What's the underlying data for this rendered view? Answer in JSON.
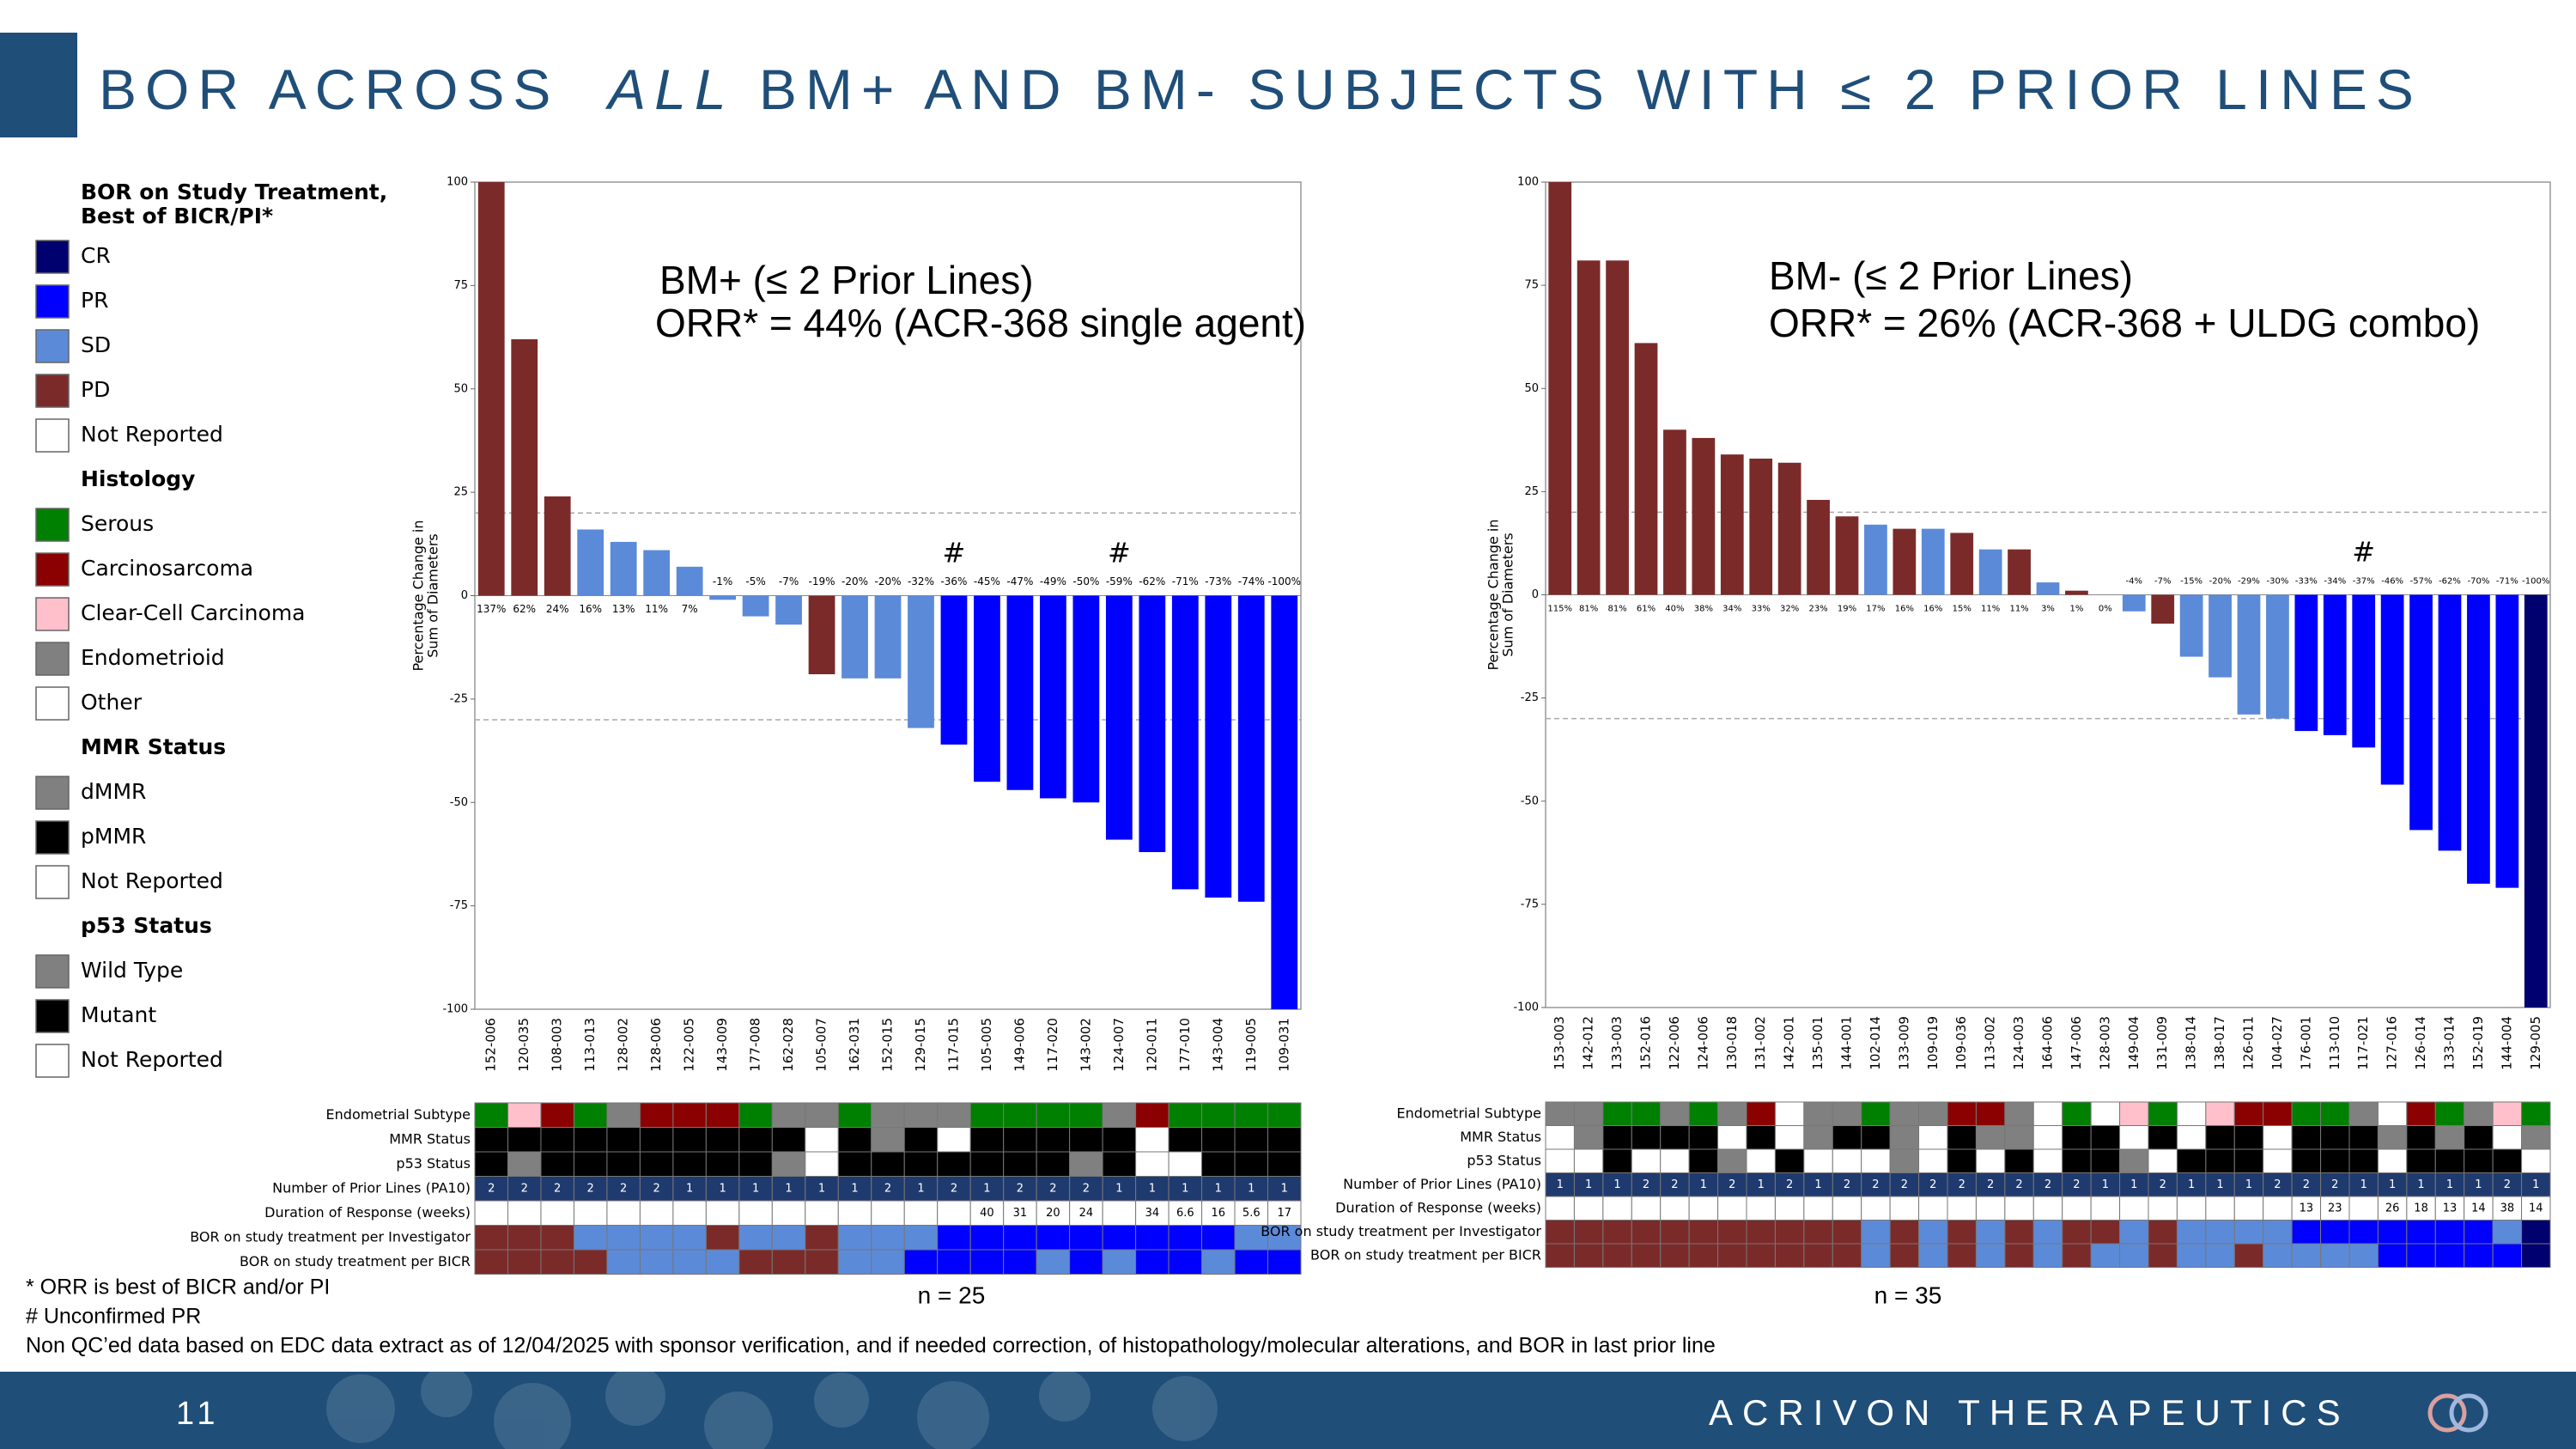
{
  "slide": {
    "title": [
      "BOR ACROSS  ",
      "ALL",
      " BM+ AND BM- SUBJECTS WITH ≤ 2 PRIOR LINES"
    ],
    "footnotes": [
      "* ORR is best of BICR and/or PI",
      "# Unconfirmed PR",
      "Non QC’ed data based on EDC data extract as of 12/04/2025 with sponsor verification, and if needed correction, of histopathology/molecular alterations, and BOR in last prior line"
    ],
    "page_number": "11",
    "company": "ACRIVON THERAPEUTICS"
  },
  "legend": {
    "groups": [
      {
        "title_lines": [
          "BOR on Study Treatment,",
          "Best of BICR/PI*"
        ],
        "items": [
          {
            "label": "CR",
            "color": "#00006e"
          },
          {
            "label": "PR",
            "color": "#0000ff"
          },
          {
            "label": "SD",
            "color": "#5b8ad9"
          },
          {
            "label": "PD",
            "color": "#7b2a2a"
          },
          {
            "label": "Not Reported",
            "color": "#ffffff"
          }
        ]
      },
      {
        "title_lines": [
          "Histology"
        ],
        "items": [
          {
            "label": "Serous",
            "color": "#008000"
          },
          {
            "label": "Carcinosarcoma",
            "color": "#8b0000"
          },
          {
            "label": "Clear-Cell Carcinoma",
            "color": "#ffc0cb"
          },
          {
            "label": "Endometrioid",
            "color": "#808080"
          },
          {
            "label": "Other",
            "color": "#ffffff"
          }
        ]
      },
      {
        "title_lines": [
          "MMR Status"
        ],
        "items": [
          {
            "label": "dMMR",
            "color": "#808080"
          },
          {
            "label": "pMMR",
            "color": "#000000"
          },
          {
            "label": "Not Reported",
            "color": "#ffffff"
          }
        ]
      },
      {
        "title_lines": [
          "p53 Status"
        ],
        "items": [
          {
            "label": "Wild Type",
            "color": "#808080"
          },
          {
            "label": "Mutant",
            "color": "#000000"
          },
          {
            "label": "Not Reported",
            "color": "#ffffff"
          }
        ]
      }
    ]
  },
  "chart_data": [
    {
      "type": "waterfall",
      "annotation_lines": [
        "BM+ (≤ 2 Prior Lines)",
        "ORR* = 44% (ACR-368 single agent)"
      ],
      "n_label": "n = 25",
      "ylabel_lines": [
        "Percentage Change in",
        "Sum of Diameters"
      ],
      "categories": [
        "152-006",
        "120-035",
        "108-003",
        "113-013",
        "128-002",
        "128-006",
        "122-005",
        "143-009",
        "177-008",
        "162-028",
        "105-007",
        "162-031",
        "152-015",
        "129-015",
        "117-015",
        "105-005",
        "149-006",
        "117-020",
        "143-002",
        "124-007",
        "120-011",
        "177-010",
        "143-004",
        "119-005",
        "109-031"
      ],
      "values": [
        137,
        62,
        24,
        16,
        13,
        11,
        7,
        -1,
        -5,
        -7,
        -19,
        -20,
        -20,
        -32,
        -36,
        -45,
        -47,
        -49,
        -50,
        -59,
        -62,
        -71,
        -73,
        -74,
        -100
      ],
      "value_labels": [
        "137%",
        "62%",
        "24%",
        "16%",
        "13%",
        "11%",
        "7%",
        "-1%",
        "-5%",
        "-7%",
        "-19%",
        "-20%",
        "-20%",
        "-32%",
        "-36%",
        "-45%",
        "-47%",
        "-49%",
        "-50%",
        "-59%",
        "-62%",
        "-71%",
        "-73%",
        "-74%",
        "-100%"
      ],
      "bar_bor": [
        "PD",
        "PD",
        "PD",
        "SD",
        "SD",
        "SD",
        "SD",
        "SD",
        "SD",
        "SD",
        "PD",
        "SD",
        "SD",
        "SD",
        "PR",
        "PR",
        "PR",
        "PR",
        "PR",
        "PR",
        "PR",
        "PR",
        "PR",
        "PR",
        "PR"
      ],
      "marks": [
        {
          "text": "#",
          "index": 14
        },
        {
          "text": "#",
          "index": 19
        }
      ],
      "ylim": [
        -100,
        100
      ],
      "yticks": [
        -100,
        -75,
        -50,
        -25,
        0,
        25,
        50,
        75,
        100
      ],
      "reference_lines": [
        20,
        -30
      ],
      "table": {
        "rows": [
          {
            "label": "Endometrial Subtype",
            "values": [
              "Serous",
              "Clear-Cell Carcinoma",
              "Carcinosarcoma",
              "Serous",
              "Endometrioid",
              "Carcinosarcoma",
              "Carcinosarcoma",
              "Carcinosarcoma",
              "Serous",
              "Endometrioid",
              "Endometrioid",
              "Serous",
              "Endometrioid",
              "Endometrioid",
              "Endometrioid",
              "Serous",
              "Serous",
              "Serous",
              "Serous",
              "Endometrioid",
              "Carcinosarcoma",
              "Serous",
              "Serous",
              "Serous",
              "Serous"
            ]
          },
          {
            "label": "MMR Status",
            "values": [
              "pMMR",
              "pMMR",
              "pMMR",
              "pMMR",
              "pMMR",
              "pMMR",
              "pMMR",
              "pMMR",
              "pMMR",
              "pMMR",
              "Not Reported",
              "pMMR",
              "dMMR",
              "pMMR",
              "Not Reported",
              "pMMR",
              "pMMR",
              "pMMR",
              "pMMR",
              "pMMR",
              "Not Reported",
              "pMMR",
              "pMMR",
              "pMMR",
              "pMMR"
            ]
          },
          {
            "label": "p53 Status",
            "values": [
              "Mutant",
              "Wild Type",
              "Mutant",
              "Mutant",
              "Mutant",
              "Mutant",
              "Mutant",
              "Mutant",
              "Mutant",
              "Wild Type",
              "Not Reported",
              "Mutant",
              "Mutant",
              "Mutant",
              "Mutant",
              "Mutant",
              "Mutant",
              "Mutant",
              "Wild Type",
              "Mutant",
              "Not Reported",
              "Not Reported",
              "Mutant",
              "Mutant",
              "Mutant"
            ]
          },
          {
            "label": "Number of Prior Lines (PA10)",
            "values": [
              2,
              2,
              2,
              2,
              2,
              2,
              1,
              1,
              1,
              1,
              1,
              1,
              2,
              1,
              2,
              1,
              2,
              2,
              2,
              1,
              1,
              1,
              1,
              1,
              1
            ]
          },
          {
            "label": "Duration of Response (weeks)",
            "values": [
              null,
              null,
              null,
              null,
              null,
              null,
              null,
              null,
              null,
              null,
              null,
              null,
              null,
              null,
              null,
              40,
              31,
              20,
              24,
              null,
              34,
              6.6,
              16,
              5.6,
              17
            ]
          },
          {
            "label": "BOR on study treatment per Investigator",
            "values": [
              "PD",
              "PD",
              "PD",
              "SD",
              "SD",
              "SD",
              "SD",
              "PD",
              "SD",
              "SD",
              "PD",
              "SD",
              "SD",
              "SD",
              "PR",
              "PR",
              "PR",
              "PR",
              "PR",
              "PR",
              "PR",
              "PR",
              "PR",
              "SD",
              "SD"
            ]
          },
          {
            "label": "BOR on study treatment per BICR",
            "values": [
              "PD",
              "PD",
              "PD",
              "PD",
              "SD",
              "SD",
              "SD",
              "SD",
              "PD",
              "PD",
              "PD",
              "SD",
              "SD",
              "PR",
              "PR",
              "PR",
              "PR",
              "SD",
              "PR",
              "SD",
              "PR",
              "PR",
              "SD",
              "PR",
              "PR"
            ]
          }
        ]
      }
    },
    {
      "type": "waterfall",
      "annotation_lines": [
        "BM- (≤ 2 Prior Lines)",
        "ORR* = 26% (ACR-368 + ULDG combo)"
      ],
      "n_label": "n = 35",
      "ylabel_lines": [
        "Percentage Change in",
        "Sum of Diameters"
      ],
      "categories": [
        "153-003",
        "142-012",
        "133-003",
        "152-016",
        "122-006",
        "124-006",
        "130-018",
        "131-002",
        "142-001",
        "135-001",
        "144-001",
        "102-014",
        "133-009",
        "109-019",
        "109-036",
        "113-002",
        "124-003",
        "164-006",
        "147-006",
        "128-003",
        "149-004",
        "131-009",
        "138-014",
        "138-017",
        "126-011",
        "104-027",
        "176-001",
        "113-010",
        "117-021",
        "127-016",
        "126-014",
        "133-014",
        "152-019",
        "144-004",
        "129-005"
      ],
      "values": [
        115,
        81,
        81,
        61,
        40,
        38,
        34,
        33,
        32,
        23,
        19,
        17,
        16,
        16,
        15,
        11,
        11,
        3,
        1,
        0,
        -4,
        -7,
        -15,
        -20,
        -29,
        -30,
        -33,
        -34,
        -37,
        -46,
        -57,
        -62,
        -70,
        -71,
        -100
      ],
      "value_labels": [
        "115%",
        "81%",
        "81%",
        "61%",
        "40%",
        "38%",
        "34%",
        "33%",
        "32%",
        "23%",
        "19%",
        "17%",
        "16%",
        "16%",
        "15%",
        "11%",
        "11%",
        "3%",
        "1%",
        "0%",
        "-4%",
        "-7%",
        "-15%",
        "-20%",
        "-29%",
        "-30%",
        "-33%",
        "-34%",
        "-37%",
        "-46%",
        "-57%",
        "-62%",
        "-70%",
        "-71%",
        "-100%"
      ],
      "bar_bor": [
        "PD",
        "PD",
        "PD",
        "PD",
        "PD",
        "PD",
        "PD",
        "PD",
        "PD",
        "PD",
        "PD",
        "SD",
        "PD",
        "SD",
        "PD",
        "SD",
        "PD",
        "SD",
        "PD",
        "SD",
        "SD",
        "PD",
        "SD",
        "SD",
        "SD",
        "SD",
        "PR",
        "PR",
        "PR",
        "PR",
        "PR",
        "PR",
        "PR",
        "PR",
        "CR"
      ],
      "marks": [
        {
          "text": "#",
          "index": 28
        }
      ],
      "ylim": [
        -100,
        100
      ],
      "yticks": [
        -100,
        -75,
        -50,
        -25,
        0,
        25,
        50,
        75,
        100
      ],
      "reference_lines": [
        20,
        -30
      ],
      "table": {
        "rows": [
          {
            "label": "Endometrial Subtype",
            "values": [
              "Endometrioid",
              "Endometrioid",
              "Serous",
              "Serous",
              "Endometrioid",
              "Serous",
              "Endometrioid",
              "Carcinosarcoma",
              "Other",
              "Endometrioid",
              "Endometrioid",
              "Serous",
              "Endometrioid",
              "Endometrioid",
              "Carcinosarcoma",
              "Carcinosarcoma",
              "Endometrioid",
              "Other",
              "Serous",
              "Other",
              "Clear-Cell Carcinoma",
              "Serous",
              "Other",
              "Clear-Cell Carcinoma",
              "Carcinosarcoma",
              "Carcinosarcoma",
              "Serous",
              "Serous",
              "Endometrioid",
              "Other",
              "Carcinosarcoma",
              "Serous",
              "Endometrioid",
              "Clear-Cell Carcinoma",
              "Serous"
            ]
          },
          {
            "label": "MMR Status",
            "values": [
              "Not Reported",
              "dMMR",
              "pMMR",
              "pMMR",
              "pMMR",
              "pMMR",
              "Not Reported",
              "pMMR",
              "Not Reported",
              "dMMR",
              "pMMR",
              "pMMR",
              "dMMR",
              "Not Reported",
              "pMMR",
              "dMMR",
              "dMMR",
              "Not Reported",
              "pMMR",
              "pMMR",
              "Not Reported",
              "pMMR",
              "Not Reported",
              "pMMR",
              "pMMR",
              "Not Reported",
              "pMMR",
              "pMMR",
              "pMMR",
              "dMMR",
              "pMMR",
              "dMMR",
              "pMMR",
              "Not Reported",
              "dMMR"
            ]
          },
          {
            "label": "p53 Status",
            "values": [
              "Not Reported",
              "Not Reported",
              "Mutant",
              "Not Reported",
              "Not Reported",
              "Mutant",
              "Wild Type",
              "Not Reported",
              "Mutant",
              "Not Reported",
              "Not Reported",
              "Not Reported",
              "Wild Type",
              "Not Reported",
              "Mutant",
              "Not Reported",
              "Mutant",
              "Not Reported",
              "Mutant",
              "Mutant",
              "Wild Type",
              "Not Reported",
              "Mutant",
              "Mutant",
              "Mutant",
              "Not Reported",
              "Mutant",
              "Mutant",
              "Mutant",
              "Not Reported",
              "Mutant",
              "Mutant",
              "Mutant",
              "Mutant",
              "Not Reported"
            ]
          },
          {
            "label": "Number of Prior Lines (PA10)",
            "values": [
              1,
              1,
              1,
              2,
              2,
              1,
              2,
              1,
              2,
              1,
              2,
              2,
              2,
              2,
              2,
              2,
              2,
              2,
              2,
              1,
              1,
              2,
              1,
              1,
              1,
              2,
              2,
              2,
              1,
              1,
              1,
              1,
              1,
              2,
              1
            ]
          },
          {
            "label": "Duration of Response (weeks)",
            "values": [
              null,
              null,
              null,
              null,
              null,
              null,
              null,
              null,
              null,
              null,
              null,
              null,
              null,
              null,
              null,
              null,
              null,
              null,
              null,
              null,
              null,
              null,
              null,
              null,
              null,
              null,
              13,
              23,
              null,
              26,
              18,
              13,
              14,
              38,
              14
            ]
          },
          {
            "label": "BOR on study treatment per Investigator",
            "values": [
              "PD",
              "PD",
              "PD",
              "PD",
              "PD",
              "PD",
              "PD",
              "PD",
              "PD",
              "PD",
              "PD",
              "SD",
              "PD",
              "SD",
              "PD",
              "SD",
              "PD",
              "SD",
              "PD",
              "PD",
              "SD",
              "PD",
              "SD",
              "SD",
              "SD",
              "SD",
              "PR",
              "PR",
              "PR",
              "PR",
              "PR",
              "PR",
              "PR",
              "SD",
              "CR"
            ]
          },
          {
            "label": "BOR on study treatment per BICR",
            "values": [
              "PD",
              "PD",
              "PD",
              "PD",
              "PD",
              "PD",
              "PD",
              "PD",
              "PD",
              "PD",
              "PD",
              "SD",
              "PD",
              "SD",
              "PD",
              "SD",
              "PD",
              "SD",
              "PD",
              "SD",
              "SD",
              "PD",
              "SD",
              "SD",
              "PD",
              "SD",
              "SD",
              "SD",
              "SD",
              "PR",
              "PR",
              "PR",
              "PR",
              "PR",
              "CR"
            ]
          }
        ]
      }
    }
  ]
}
